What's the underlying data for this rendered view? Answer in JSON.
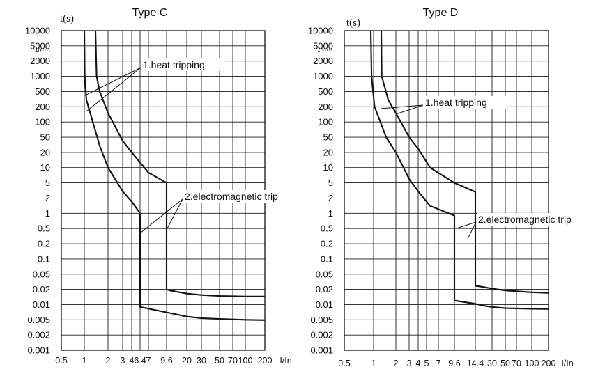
{
  "chart_data": [
    {
      "type": "line",
      "title": "Type  C",
      "ylabel": "t(s)",
      "xlabel": "I/In",
      "y_ticks": [
        "10000",
        "5000",
        "2000",
        "1000",
        "500",
        "200",
        "100",
        "50",
        "20",
        "10",
        "5",
        "2",
        "1",
        "0.5",
        "0.2",
        "0.1",
        "0.05",
        "0.02",
        "0.01",
        "0.005",
        "0.002",
        "0.001"
      ],
      "y_extra_label": "1h",
      "x_ticks": [
        "0.5",
        "1",
        "2",
        "3",
        "4",
        "6.4",
        "7",
        "9.6",
        "20",
        "30",
        "50",
        "70",
        "100",
        "200"
      ],
      "grid": true,
      "annotations": [
        "1.heat tripping",
        "2.electromagnetic trip"
      ],
      "series": [
        {
          "points": [
            [
              "1",
              "10000"
            ],
            [
              "1.01",
              "1000"
            ],
            [
              "1.05",
              "300"
            ],
            [
              "1.5",
              "30"
            ],
            [
              "2",
              "10"
            ],
            [
              "3",
              "3"
            ],
            [
              "4",
              "1.7"
            ],
            [
              "5.1",
              "1"
            ],
            [
              "5.1",
              "0.009"
            ],
            [
              "10",
              "0.0068"
            ],
            [
              "20",
              "0.0058"
            ],
            [
              "30",
              "0.0054"
            ],
            [
              "50",
              "0.0052"
            ],
            [
              "100",
              "0.005"
            ],
            [
              "200",
              "0.0049"
            ]
          ]
        },
        {
          "points": [
            [
              "1.3",
              "10000"
            ],
            [
              "1.35",
              "1000"
            ],
            [
              "1.5",
              "500"
            ],
            [
              "2",
              "150"
            ],
            [
              "3",
              "40"
            ],
            [
              "4",
              "20"
            ],
            [
              "6",
              "8"
            ],
            [
              "8",
              "5"
            ],
            [
              "8",
              "0.02"
            ],
            [
              "10",
              "0.019"
            ],
            [
              "20",
              "0.0165"
            ],
            [
              "30",
              "0.0155"
            ],
            [
              "50",
              "0.0148"
            ],
            [
              "100",
              "0.0145"
            ],
            [
              "200",
              "0.0145"
            ]
          ]
        }
      ]
    },
    {
      "type": "line",
      "title": "Type  D",
      "ylabel": "t(s)",
      "xlabel": "I/In",
      "y_ticks": [
        "10000",
        "5000",
        "2000",
        "1000",
        "500",
        "200",
        "100",
        "50",
        "20",
        "10",
        "5",
        "2",
        "1",
        "0.5",
        "0.2",
        "0.1",
        "0.05",
        "0.02",
        "0.01",
        "0.005",
        "0.002",
        "0.001"
      ],
      "y_extra_label": "1h",
      "x_ticks": [
        "0.5",
        "1",
        "2",
        "3",
        "4",
        "5",
        "7",
        "9.6",
        "14.4",
        "30",
        "50",
        "70",
        "100",
        "200",
        "I/In"
      ],
      "grid": true,
      "annotations": [
        "1.heat tripping",
        "2.electromagnetic trip"
      ],
      "series": [
        {
          "points": [
            [
              "1",
              "10000"
            ],
            [
              "1.02",
              "1000"
            ],
            [
              "1.1",
              "200"
            ],
            [
              "1.5",
              "50"
            ],
            [
              "2",
              "20"
            ],
            [
              "3",
              "6"
            ],
            [
              "4",
              "3"
            ],
            [
              "6",
              "1.4"
            ],
            [
              "9.6",
              "0.9"
            ],
            [
              "9.6",
              "0.012"
            ],
            [
              "14",
              "0.0105"
            ],
            [
              "20",
              "0.0095"
            ],
            [
              "30",
              "0.009"
            ],
            [
              "50",
              "0.0085"
            ],
            [
              "100",
              "0.0083"
            ],
            [
              "200",
              "0.0082"
            ]
          ]
        },
        {
          "points": [
            [
              "1.3",
              "10000"
            ],
            [
              "1.32",
              "1000"
            ],
            [
              "1.6",
              "300"
            ],
            [
              "2",
              "150"
            ],
            [
              "3",
              "50"
            ],
            [
              "4",
              "25"
            ],
            [
              "6",
              "10"
            ],
            [
              "9.6",
              "5"
            ],
            [
              "14.4",
              "2.9"
            ],
            [
              "14.4",
              "0.025"
            ],
            [
              "20",
              "0.023"
            ],
            [
              "30",
              "0.021"
            ],
            [
              "50",
              "0.019"
            ],
            [
              "100",
              "0.0175"
            ],
            [
              "200",
              "0.017"
            ]
          ]
        }
      ]
    }
  ]
}
